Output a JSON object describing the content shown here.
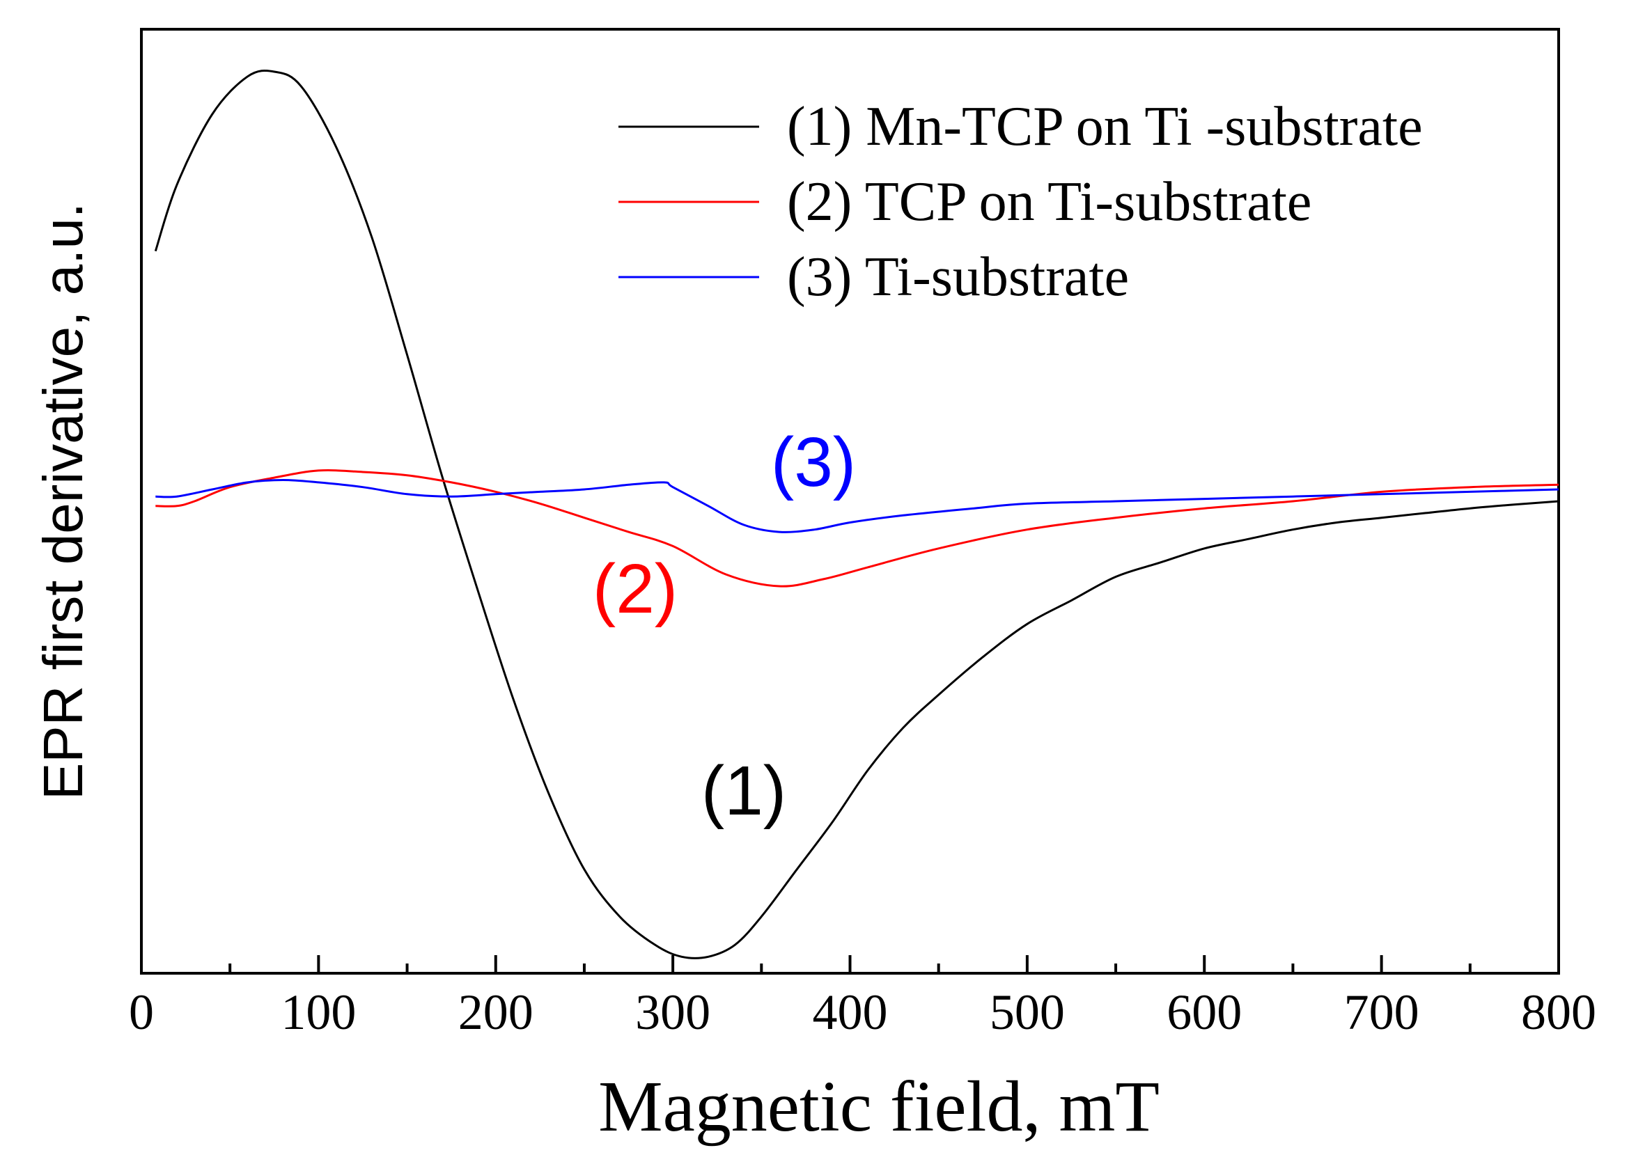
{
  "chart_data": {
    "type": "line",
    "title": "",
    "xlabel": "Magnetic field, mT",
    "ylabel": "EPR first derivative, a.u.",
    "xlim": [
      0,
      800
    ],
    "ylim": [
      -1.0,
      1.0
    ],
    "y_ticks_labeled": false,
    "xticks": [
      "0",
      "100",
      "200",
      "300",
      "400",
      "500",
      "600",
      "700",
      "800"
    ],
    "legend_position": "top-right",
    "series": [
      {
        "name": "(1) Mn-TCP on Ti -substrate",
        "color": "#000000",
        "annotation": "(1)",
        "x": [
          8,
          20,
          40,
          60,
          75,
          90,
          110,
          130,
          150,
          170,
          190,
          210,
          230,
          250,
          270,
          290,
          305,
          320,
          335,
          350,
          370,
          390,
          410,
          430,
          450,
          475,
          500,
          525,
          550,
          575,
          600,
          625,
          650,
          675,
          700,
          725,
          750,
          775,
          800
        ],
        "y": [
          0.53,
          0.67,
          0.82,
          0.9,
          0.91,
          0.88,
          0.75,
          0.56,
          0.31,
          0.05,
          -0.19,
          -0.42,
          -0.62,
          -0.78,
          -0.88,
          -0.94,
          -0.965,
          -0.965,
          -0.94,
          -0.88,
          -0.78,
          -0.68,
          -0.57,
          -0.48,
          -0.41,
          -0.33,
          -0.26,
          -0.21,
          -0.16,
          -0.13,
          -0.1,
          -0.08,
          -0.06,
          -0.045,
          -0.035,
          -0.025,
          -0.015,
          -0.007,
          0.0
        ]
      },
      {
        "name": "(2) TCP on Ti-substrate",
        "color": "#ff0000",
        "annotation": "(2)",
        "x": [
          8,
          20,
          30,
          50,
          75,
          100,
          125,
          150,
          175,
          200,
          225,
          250,
          275,
          300,
          330,
          360,
          385,
          410,
          450,
          500,
          550,
          600,
          650,
          700,
          750,
          800
        ],
        "y": [
          -0.01,
          -0.01,
          0.0,
          0.03,
          0.05,
          0.065,
          0.062,
          0.055,
          0.04,
          0.02,
          -0.005,
          -0.035,
          -0.065,
          -0.095,
          -0.155,
          -0.18,
          -0.165,
          -0.14,
          -0.1,
          -0.06,
          -0.035,
          -0.015,
          0.0,
          0.02,
          0.03,
          0.035
        ]
      },
      {
        "name": "(3) Ti-substrate",
        "color": "#0000ff",
        "annotation": "(3)",
        "x": [
          8,
          20,
          40,
          60,
          80,
          100,
          125,
          150,
          175,
          200,
          225,
          250,
          275,
          295,
          300,
          320,
          340,
          360,
          380,
          400,
          430,
          470,
          500,
          550,
          600,
          650,
          700,
          750,
          800
        ],
        "y": [
          0.01,
          0.01,
          0.025,
          0.04,
          0.045,
          0.04,
          0.03,
          0.015,
          0.01,
          0.015,
          0.02,
          0.025,
          0.035,
          0.04,
          0.03,
          -0.01,
          -0.05,
          -0.065,
          -0.06,
          -0.045,
          -0.03,
          -0.015,
          -0.005,
          0.0,
          0.005,
          0.01,
          0.015,
          0.02,
          0.025
        ]
      }
    ]
  }
}
